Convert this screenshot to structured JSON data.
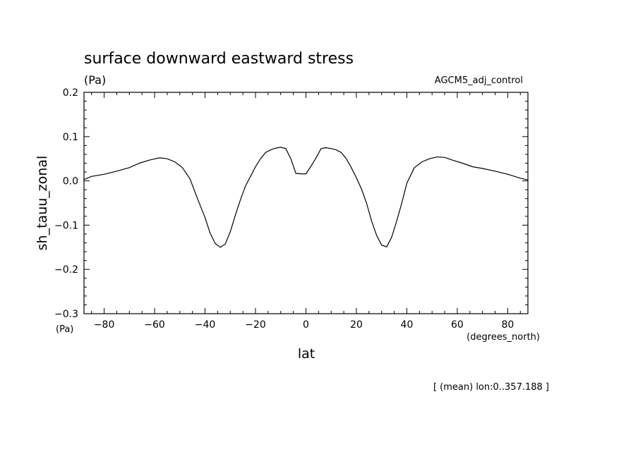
{
  "chart_data": {
    "type": "line",
    "title": "surface downward eastward stress",
    "units": "(Pa)",
    "experiment": "AGCM5_adj_control",
    "xlabel": "lat",
    "ylabel": "sh_tauu_zonal",
    "x_units": "(degrees_north)",
    "y_units_bottom": "(Pa)",
    "footnote": "[ (mean) lon:0..357.188 ]",
    "xlim": [
      -88,
      88
    ],
    "ylim": [
      -0.3,
      0.2
    ],
    "xticks": [
      -80,
      -60,
      -40,
      -20,
      0,
      20,
      40,
      60,
      80
    ],
    "xtick_labels": [
      "−80",
      "−60",
      "−40",
      "−20",
      "0",
      "20",
      "40",
      "60",
      "80"
    ],
    "yticks": [
      0.2,
      0.1,
      0.0,
      -0.1,
      -0.2,
      -0.3
    ],
    "ytick_labels": [
      "0.2",
      "0.1",
      "0.0",
      "−0.1",
      "−0.2",
      "−0.3"
    ],
    "grid": false,
    "series": [
      {
        "x": [
          -88,
          -85,
          -80,
          -75,
          -70,
          -66,
          -62,
          -58,
          -55,
          -52,
          -49,
          -46,
          -43,
          -40,
          -38,
          -36,
          -34,
          -32,
          -30,
          -28,
          -26,
          -24,
          -22,
          -20,
          -18,
          -16,
          -14,
          -12,
          -10,
          -8,
          -6,
          -4,
          -2,
          0,
          2,
          4,
          6,
          8,
          10,
          12,
          14,
          16,
          18,
          20,
          22,
          24,
          26,
          28,
          30,
          32,
          34,
          36,
          38,
          40,
          43,
          46,
          49,
          52,
          55,
          58,
          62,
          66,
          70,
          75,
          80,
          85,
          88
        ],
        "y": [
          0.003,
          0.01,
          0.015,
          0.022,
          0.03,
          0.04,
          0.047,
          0.052,
          0.05,
          0.043,
          0.03,
          0.005,
          -0.04,
          -0.083,
          -0.118,
          -0.141,
          -0.15,
          -0.143,
          -0.115,
          -0.078,
          -0.043,
          -0.012,
          0.01,
          0.032,
          0.05,
          0.064,
          0.07,
          0.074,
          0.076,
          0.073,
          0.05,
          0.017,
          0.016,
          0.016,
          0.033,
          0.052,
          0.073,
          0.075,
          0.073,
          0.07,
          0.064,
          0.05,
          0.03,
          0.007,
          -0.018,
          -0.05,
          -0.09,
          -0.123,
          -0.145,
          -0.149,
          -0.127,
          -0.09,
          -0.05,
          -0.005,
          0.03,
          0.043,
          0.05,
          0.054,
          0.053,
          0.047,
          0.04,
          0.032,
          0.028,
          0.022,
          0.015,
          0.006,
          0.002
        ]
      }
    ]
  }
}
